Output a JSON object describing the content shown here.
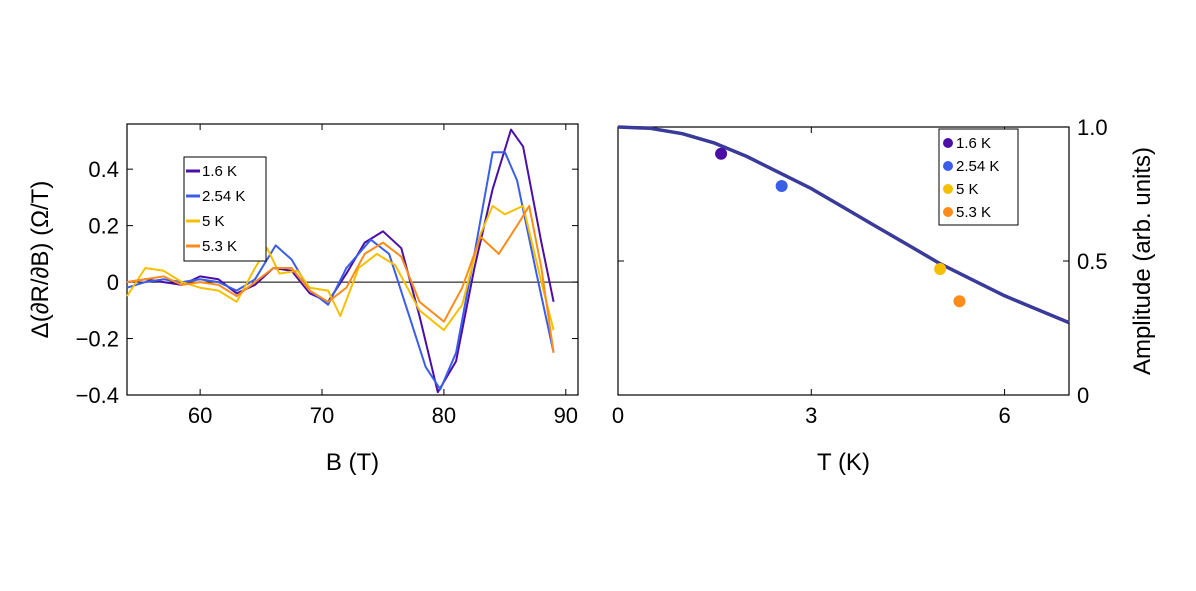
{
  "chart_data": [
    {
      "type": "line",
      "xlabel": "B (T)",
      "ylabel": "Δ(∂R/∂B) (Ω/T)",
      "xlim": [
        54,
        91
      ],
      "ylim": [
        -0.4,
        0.56
      ],
      "xticks": [
        60,
        70,
        80,
        90
      ],
      "xtick_labels": [
        "60",
        "70",
        "80",
        "90"
      ],
      "yticks": [
        -0.4,
        -0.2,
        0,
        0.2,
        0.4
      ],
      "ytick_labels": [
        "−0.4",
        "−0.2",
        "0",
        "0.2",
        "0.4"
      ],
      "zero_line": true,
      "legend": {
        "position": "upper-left"
      },
      "series": [
        {
          "name": "1.6 K",
          "color": "#4b0fa8",
          "points": [
            [
              54,
              0.0
            ],
            [
              55.5,
              0.01
            ],
            [
              57,
              0.0
            ],
            [
              58.5,
              -0.01
            ],
            [
              60,
              0.02
            ],
            [
              61.5,
              0.01
            ],
            [
              63,
              -0.04
            ],
            [
              64.5,
              -0.01
            ],
            [
              66,
              0.05
            ],
            [
              67.5,
              0.04
            ],
            [
              69,
              -0.04
            ],
            [
              70.5,
              -0.07
            ],
            [
              72,
              0.03
            ],
            [
              73.5,
              0.14
            ],
            [
              75,
              0.18
            ],
            [
              76.5,
              0.12
            ],
            [
              78,
              -0.12
            ],
            [
              79.5,
              -0.39
            ],
            [
              81,
              -0.28
            ],
            [
              82.5,
              0.05
            ],
            [
              84,
              0.33
            ],
            [
              85.5,
              0.54
            ],
            [
              86.5,
              0.48
            ],
            [
              88,
              0.14
            ],
            [
              89,
              -0.07
            ]
          ]
        },
        {
          "name": "2.54 K",
          "color": "#3b5ee8",
          "points": [
            [
              54,
              -0.02
            ],
            [
              55.5,
              0.0
            ],
            [
              57,
              0.01
            ],
            [
              58.5,
              0.0
            ],
            [
              60,
              0.01
            ],
            [
              61.5,
              0.0
            ],
            [
              63,
              -0.03
            ],
            [
              64.5,
              0.01
            ],
            [
              66.2,
              0.13
            ],
            [
              67.5,
              0.08
            ],
            [
              69,
              -0.03
            ],
            [
              70.5,
              -0.08
            ],
            [
              72,
              0.05
            ],
            [
              74,
              0.15
            ],
            [
              75.5,
              0.1
            ],
            [
              77,
              -0.1
            ],
            [
              78.5,
              -0.3
            ],
            [
              79.7,
              -0.38
            ],
            [
              81,
              -0.25
            ],
            [
              82.5,
              0.1
            ],
            [
              84,
              0.46
            ],
            [
              85,
              0.46
            ],
            [
              86,
              0.36
            ],
            [
              87.5,
              0.05
            ],
            [
              89,
              -0.25
            ]
          ]
        },
        {
          "name": "5 K",
          "color": "#f5c000",
          "points": [
            [
              54,
              -0.05
            ],
            [
              55.5,
              0.05
            ],
            [
              57,
              0.04
            ],
            [
              58.5,
              0.0
            ],
            [
              60,
              -0.02
            ],
            [
              61.5,
              -0.03
            ],
            [
              63,
              -0.07
            ],
            [
              64.5,
              0.05
            ],
            [
              65.5,
              0.12
            ],
            [
              66.5,
              0.03
            ],
            [
              68,
              0.04
            ],
            [
              69,
              -0.02
            ],
            [
              70.5,
              -0.03
            ],
            [
              71.5,
              -0.12
            ],
            [
              73,
              0.05
            ],
            [
              74.5,
              0.1
            ],
            [
              76,
              0.06
            ],
            [
              78,
              -0.1
            ],
            [
              80,
              -0.17
            ],
            [
              81.5,
              -0.08
            ],
            [
              83,
              0.17
            ],
            [
              84,
              0.27
            ],
            [
              85,
              0.24
            ],
            [
              86.5,
              0.27
            ],
            [
              88,
              0.0
            ],
            [
              89,
              -0.17
            ]
          ]
        },
        {
          "name": "5.3 K",
          "color": "#ff8c1a",
          "points": [
            [
              54,
              0.0
            ],
            [
              55.5,
              0.01
            ],
            [
              57,
              0.02
            ],
            [
              58.5,
              -0.01
            ],
            [
              60,
              0.0
            ],
            [
              61.5,
              -0.01
            ],
            [
              63,
              -0.05
            ],
            [
              64.5,
              0.0
            ],
            [
              66,
              0.05
            ],
            [
              67.5,
              0.05
            ],
            [
              69,
              -0.03
            ],
            [
              70.5,
              -0.07
            ],
            [
              72,
              -0.02
            ],
            [
              73.5,
              0.1
            ],
            [
              75,
              0.14
            ],
            [
              76.5,
              0.09
            ],
            [
              78,
              -0.07
            ],
            [
              80,
              -0.14
            ],
            [
              81.5,
              -0.02
            ],
            [
              83,
              0.16
            ],
            [
              84.5,
              0.1
            ],
            [
              86,
              0.2
            ],
            [
              87,
              0.27
            ],
            [
              88,
              0.05
            ],
            [
              89,
              -0.25
            ]
          ]
        }
      ]
    },
    {
      "type": "scatter",
      "xlabel": "T (K)",
      "ylabel": "Amplitude (arb. units)",
      "yaxis_side": "right",
      "xlim": [
        0,
        7
      ],
      "ylim": [
        0,
        1.0
      ],
      "xticks": [
        0,
        3,
        6
      ],
      "xtick_labels": [
        "0",
        "3",
        "6"
      ],
      "yticks": [
        0,
        0.5,
        1.0
      ],
      "ytick_labels": [
        "0",
        "0.5",
        "1.0"
      ],
      "fit_curve": {
        "color": "#3a3a9a",
        "points": [
          [
            0,
            1.0
          ],
          [
            0.5,
            0.995
          ],
          [
            1,
            0.975
          ],
          [
            1.5,
            0.94
          ],
          [
            2,
            0.89
          ],
          [
            2.5,
            0.83
          ],
          [
            3,
            0.77
          ],
          [
            3.5,
            0.7
          ],
          [
            4,
            0.63
          ],
          [
            4.5,
            0.56
          ],
          [
            5,
            0.49
          ],
          [
            5.5,
            0.43
          ],
          [
            6,
            0.37
          ],
          [
            6.5,
            0.32
          ],
          [
            7,
            0.27
          ]
        ]
      },
      "legend": {
        "position": "upper-right"
      },
      "series": [
        {
          "name": "1.6 K",
          "color": "#4b0fa8",
          "x": 1.6,
          "y": 0.9
        },
        {
          "name": "2.54 K",
          "color": "#3b5ee8",
          "x": 2.54,
          "y": 0.78
        },
        {
          "name": "5 K",
          "color": "#f5c000",
          "x": 5.0,
          "y": 0.47
        },
        {
          "name": "5.3 K",
          "color": "#ff8c1a",
          "x": 5.3,
          "y": 0.35
        }
      ]
    }
  ]
}
